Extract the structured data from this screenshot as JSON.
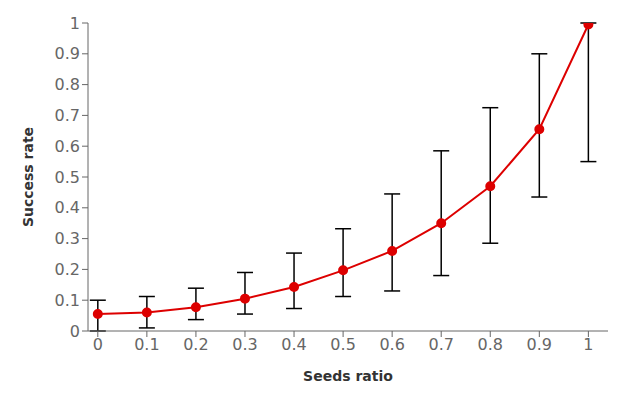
{
  "chart_data": {
    "type": "line",
    "xlabel": "Seeds ratio",
    "ylabel": "Success rate",
    "x": [
      0,
      0.1,
      0.2,
      0.3,
      0.4,
      0.5,
      0.6,
      0.7,
      0.8,
      0.9,
      1.0
    ],
    "values": [
      0.055,
      0.06,
      0.077,
      0.105,
      0.143,
      0.197,
      0.26,
      0.35,
      0.47,
      0.655,
      0.995
    ],
    "error_low": [
      0.055,
      0.05,
      0.04,
      0.05,
      0.07,
      0.085,
      0.13,
      0.17,
      0.185,
      0.22,
      0.445
    ],
    "error_high": [
      0.045,
      0.052,
      0.062,
      0.085,
      0.11,
      0.135,
      0.185,
      0.235,
      0.255,
      0.245,
      0.005
    ],
    "color": "#dd0000",
    "marker": "circle",
    "line_style": "solid",
    "xlim": [
      -0.02,
      1.04
    ],
    "ylim": [
      0,
      1.0
    ],
    "xticks": [
      0,
      0.1,
      0.2,
      0.3,
      0.4,
      0.5,
      0.6,
      0.7,
      0.8,
      0.9,
      1
    ],
    "yticks": [
      0,
      0.1,
      0.2,
      0.3,
      0.4,
      0.5,
      0.6,
      0.7,
      0.8,
      0.9,
      1
    ],
    "grid": false
  }
}
